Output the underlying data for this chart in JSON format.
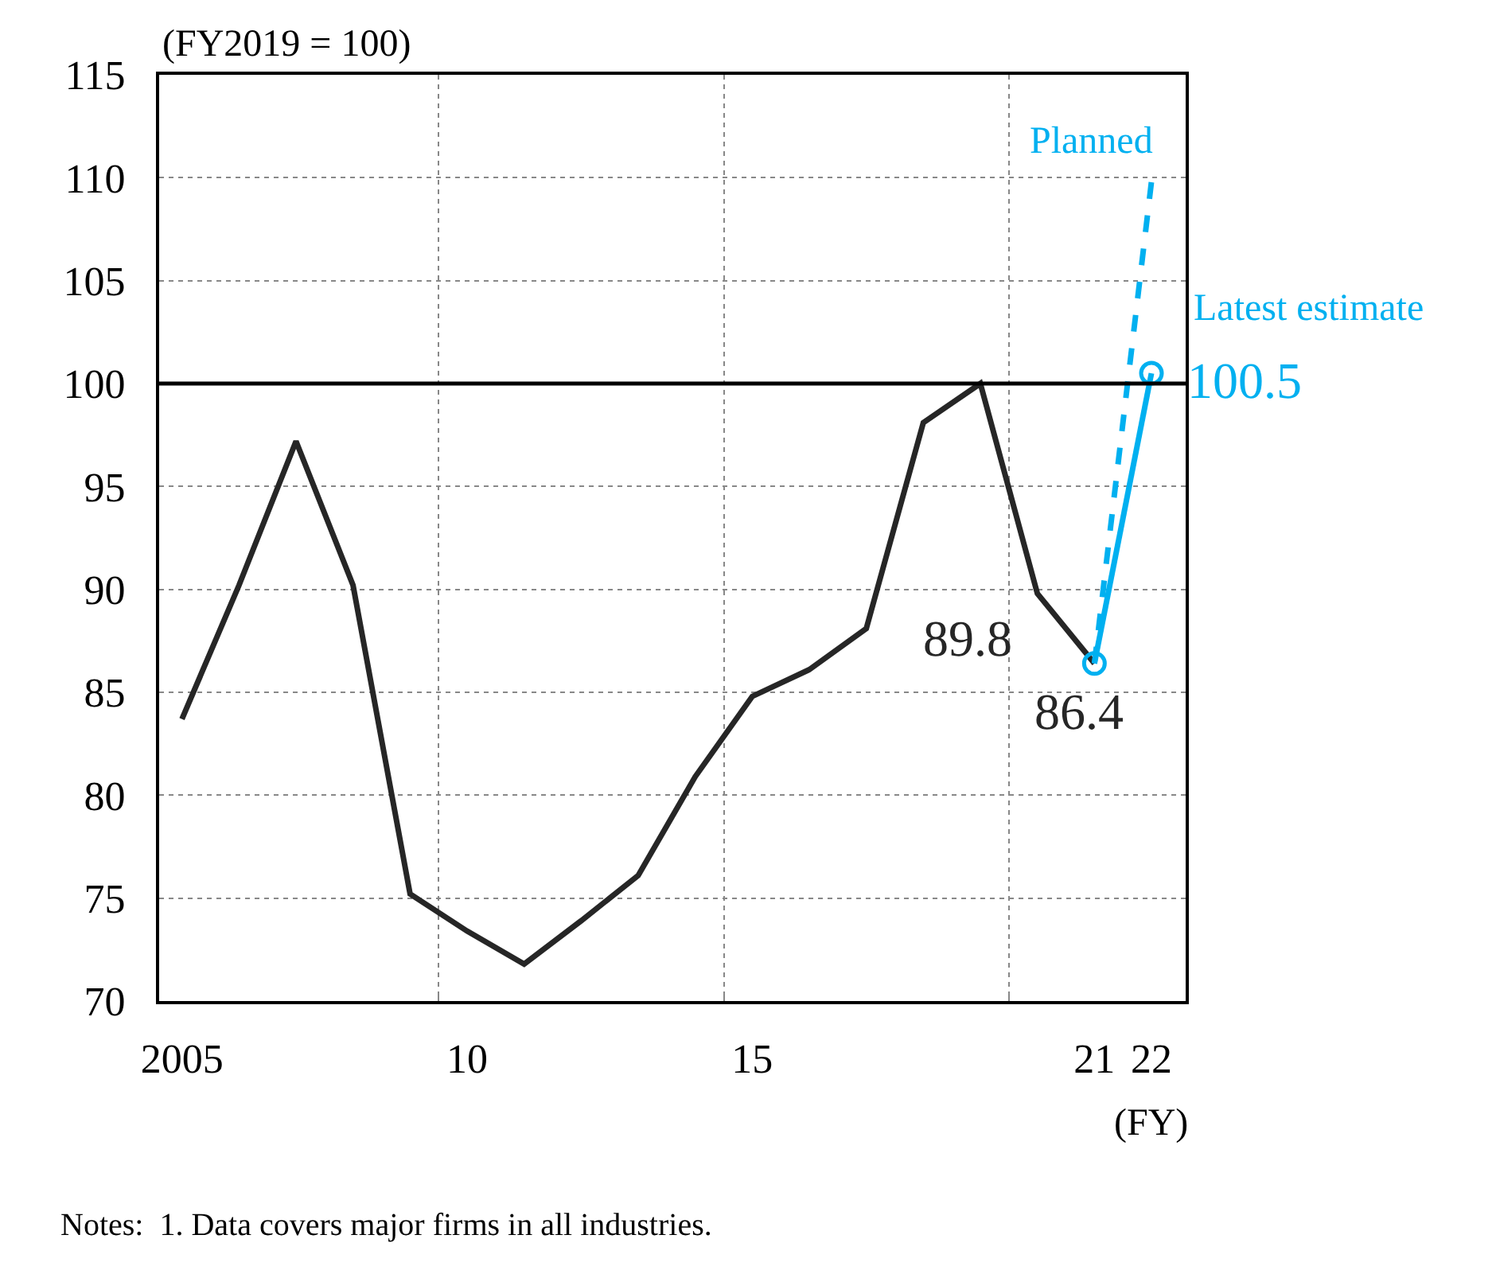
{
  "chart_data": {
    "type": "line",
    "x": [
      2005,
      2006,
      2007,
      2008,
      2009,
      2010,
      2011,
      2012,
      2013,
      2014,
      2015,
      2016,
      2017,
      2018,
      2019,
      2020,
      2021,
      2022
    ],
    "series": [
      {
        "color": "#262626",
        "marker": "none",
        "line_style": "solid",
        "values": [
          83.7,
          90.2,
          97.2,
          90.2,
          75.2,
          73.4,
          71.8,
          73.9,
          76.1,
          80.9,
          84.8,
          86.1,
          88.1,
          98.1,
          100,
          89.8,
          86.4,
          null
        ],
        "value_labels": [
          null,
          null,
          null,
          null,
          null,
          null,
          null,
          null,
          null,
          null,
          null,
          null,
          null,
          null,
          null,
          "89.8",
          "86.4",
          null
        ]
      },
      {
        "name": "Latest estimate",
        "color": "#00b0f0",
        "marker": "circle",
        "line_style": "solid",
        "values": [
          null,
          null,
          null,
          null,
          null,
          null,
          null,
          null,
          null,
          null,
          null,
          null,
          null,
          null,
          null,
          null,
          86.4,
          100.5
        ],
        "value_labels": [
          null,
          null,
          null,
          null,
          null,
          null,
          null,
          null,
          null,
          null,
          null,
          null,
          null,
          null,
          null,
          null,
          null,
          "100.5"
        ]
      },
      {
        "name": "Planned",
        "color": "#00b0f0",
        "marker": "none",
        "line_style": "dashed",
        "values": [
          null,
          null,
          null,
          null,
          null,
          null,
          null,
          null,
          null,
          null,
          null,
          null,
          null,
          null,
          null,
          null,
          86.4,
          109.8
        ]
      }
    ],
    "xlim": [
      2004.6,
      2022.6
    ],
    "xticks": [
      {
        "value": 2005,
        "label": "2005"
      },
      {
        "value": 2010,
        "label": "10"
      },
      {
        "value": 2015,
        "label": "15"
      },
      {
        "value": 2021,
        "label": "21"
      },
      {
        "value": 2022,
        "label": "22"
      },
      {
        "value": 2009.5,
        "label": null
      },
      {
        "value": 2014.5,
        "label": null
      },
      {
        "value": 2019.5,
        "label": null
      }
    ],
    "ylim": [
      70,
      115
    ],
    "yticks": [
      70,
      75,
      80,
      85,
      90,
      95,
      100,
      105,
      110,
      115
    ],
    "grid": true,
    "legend": false,
    "ref_lines": [
      {
        "axis": "y",
        "value": 100,
        "color": "#000000",
        "line_style": "solid"
      }
    ],
    "annotations": [
      "(FY2019 = 100)",
      "(FY)",
      "Notes:  1. Data covers major firms in all industries."
    ]
  }
}
